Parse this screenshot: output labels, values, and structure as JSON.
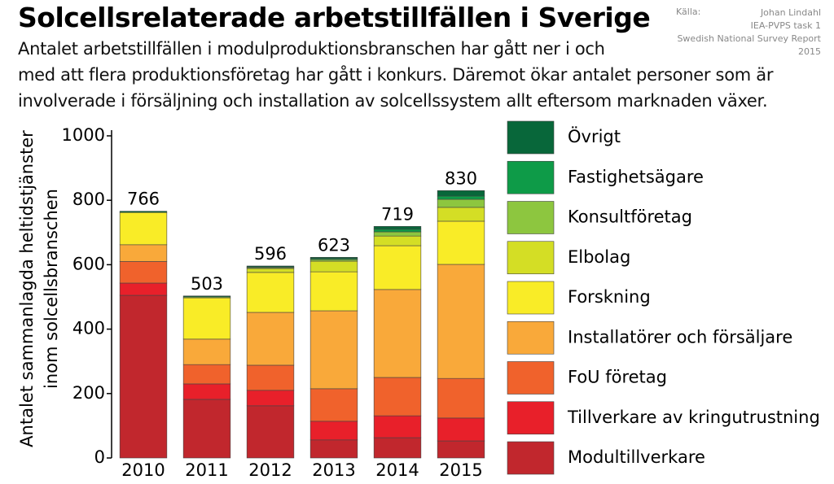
{
  "chart_data": {
    "type": "stacked-bar",
    "title": "Solcellsrelaterade arbetstillfällen i Sverige",
    "subtitle": [
      "Antalet arbetstillfällen i modulproduktionsbranschen har gått ner i och",
      "med att flera produktionsföretag har gått i konkurs. Däremot ökar antalet personer som är",
      "involverade i försäljning och installation av solcellssystem allt eftersom marknaden växer."
    ],
    "source": {
      "label": "Källa:",
      "lines": [
        "Johan Lindahl",
        "IEA-PVPS task 1",
        "Swedish National Survey Report",
        "2015"
      ]
    },
    "ylabel": [
      "Antalet sammanlagda heltidstjänster",
      "inom solcellsbranschen"
    ],
    "categories": [
      "2010",
      "2011",
      "2012",
      "2013",
      "2014",
      "2015"
    ],
    "totals": [
      766,
      503,
      596,
      623,
      719,
      830
    ],
    "series": [
      {
        "name": "Modultillverkare",
        "color": "#c1272d",
        "values": [
          505,
          182,
          162,
          56,
          63,
          53
        ]
      },
      {
        "name": "Tillverkare av kringutrustning",
        "color": "#e8202a",
        "values": [
          38,
          48,
          48,
          58,
          68,
          71
        ]
      },
      {
        "name": "FoU företag",
        "color": "#f0622c",
        "values": [
          67,
          60,
          78,
          101,
          119,
          123
        ]
      },
      {
        "name": "Installatörer och försäljare",
        "color": "#f9a93a",
        "values": [
          52,
          79,
          164,
          242,
          273,
          354
        ]
      },
      {
        "name": "Forskning",
        "color": "#f9ec27",
        "values": [
          100,
          128,
          124,
          121,
          136,
          134
        ]
      },
      {
        "name": "Elbolag",
        "color": "#d4de25",
        "values": [
          0,
          0,
          12,
          33,
          30,
          43
        ]
      },
      {
        "name": "Konsultföretag",
        "color": "#8dc63f",
        "values": [
          0,
          3,
          3,
          5,
          13,
          25
        ]
      },
      {
        "name": "Fastighetsägare",
        "color": "#0e9b48",
        "values": [
          0,
          0,
          2,
          3,
          8,
          10
        ]
      },
      {
        "name": "Övrigt",
        "color": "#08673a",
        "values": [
          4,
          3,
          3,
          4,
          9,
          17
        ]
      }
    ],
    "ylim": [
      0,
      1000
    ],
    "yticks": [
      0,
      200,
      400,
      600,
      800,
      1000
    ],
    "grid": false
  }
}
